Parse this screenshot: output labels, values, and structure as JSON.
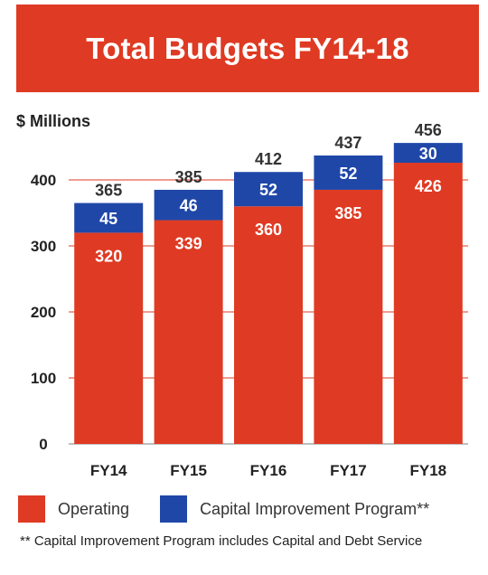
{
  "title": "Total Budgets FY14-18",
  "footnote": "** Capital Improvement Program includes Capital and Debt Service",
  "chart_data": {
    "type": "bar",
    "stacked": true,
    "ylabel": "$ Millions",
    "ylim": [
      0,
      470
    ],
    "yticks": [
      0,
      100,
      200,
      300,
      400
    ],
    "grid": true,
    "legend_position": "bottom",
    "categories": [
      "FY14",
      "FY15",
      "FY16",
      "FY17",
      "FY18"
    ],
    "series": [
      {
        "name": "Operating",
        "color": "#df3a23",
        "values": [
          320,
          339,
          360,
          385,
          426
        ]
      },
      {
        "name": "Capital Improvement Program**",
        "color": "#1f47a8",
        "values": [
          45,
          46,
          52,
          52,
          30
        ]
      }
    ],
    "totals": [
      365,
      385,
      412,
      437,
      456
    ]
  }
}
